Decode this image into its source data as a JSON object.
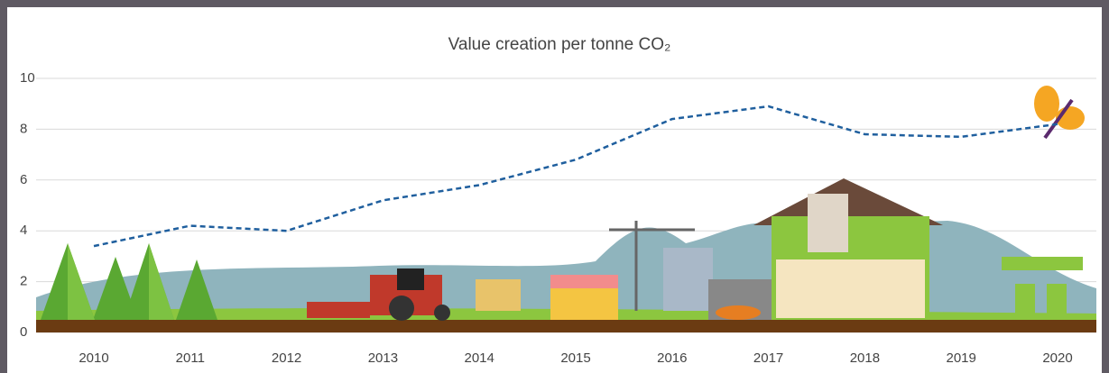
{
  "chart_data": {
    "type": "line",
    "title": "Value creation per tonne CO₂",
    "categories": [
      "2010",
      "2011",
      "2012",
      "2013",
      "2014",
      "2015",
      "2016",
      "2017",
      "2018",
      "2019",
      "2020"
    ],
    "values": [
      3.4,
      4.2,
      4.0,
      5.2,
      5.8,
      6.8,
      8.4,
      8.9,
      7.8,
      7.7,
      8.2
    ],
    "color": "#1f5f9e",
    "ylim": [
      0,
      10
    ],
    "yticks": [
      0,
      2,
      4,
      6,
      8,
      10
    ],
    "grid": true
  }
}
